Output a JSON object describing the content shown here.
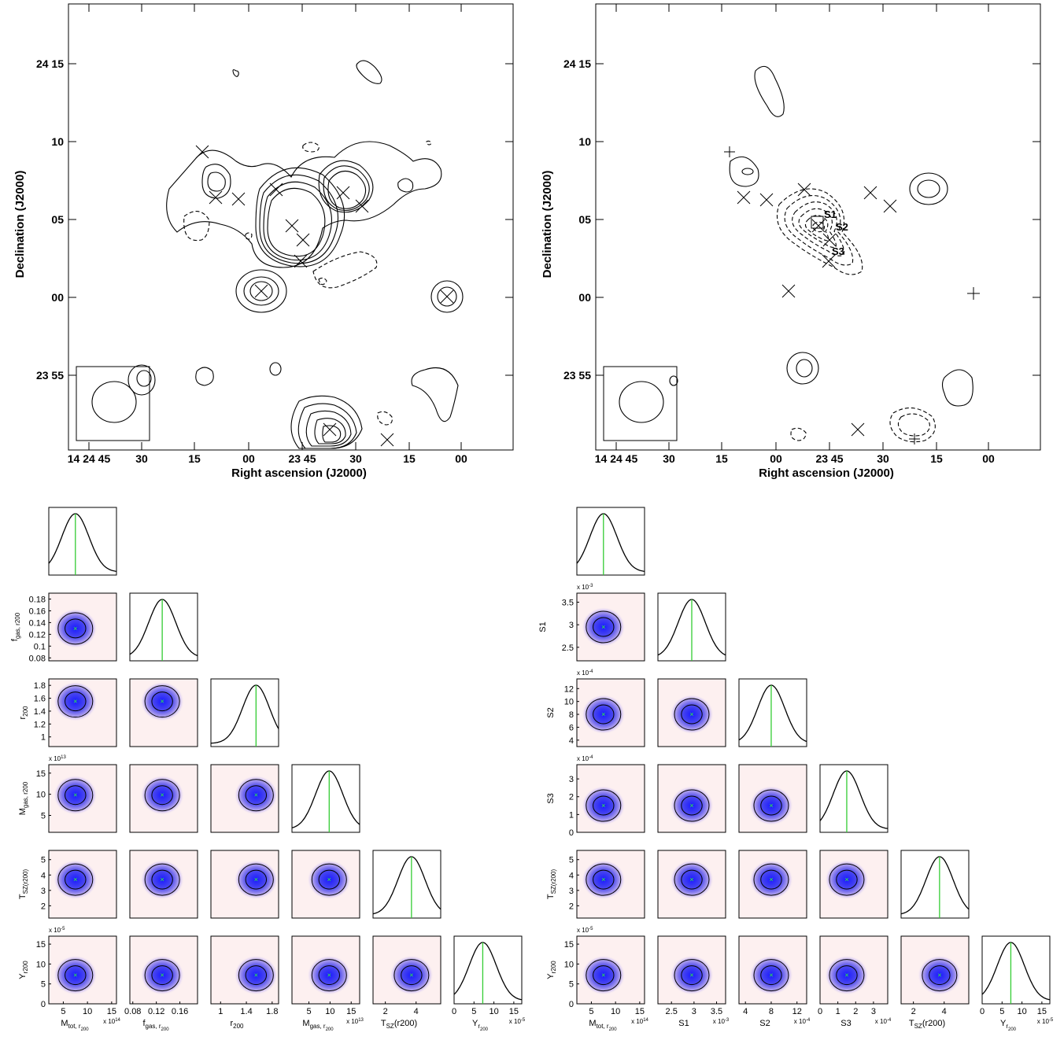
{
  "chart_data": [
    {
      "type": "contour",
      "panel": "top-left",
      "xlabel": "Right ascension (J2000)",
      "ylabel": "Declination (J2000)",
      "x_ticks": [
        "14 24 45",
        "30",
        "15",
        "00",
        "23 45",
        "30",
        "15",
        "00"
      ],
      "y_ticks": [
        "24 15",
        "10",
        "05",
        "00",
        "23 55"
      ],
      "contour_styles": [
        "solid",
        "dashed"
      ]
    },
    {
      "type": "contour",
      "panel": "top-right",
      "xlabel": "Right ascension (J2000)",
      "ylabel": "Declination (J2000)",
      "x_ticks": [
        "14 24 45",
        "30",
        "15",
        "00",
        "23 45",
        "30",
        "15",
        "00"
      ],
      "y_ticks": [
        "24 15",
        "10",
        "05",
        "00",
        "23 55"
      ],
      "source_labels": [
        "S1",
        "S2",
        "S3"
      ]
    },
    {
      "type": "corner",
      "panel": "bottom-left",
      "params": [
        {
          "label": "M_tot, r200",
          "mean": 7.5,
          "ticks": [
            "5",
            "10",
            "15"
          ],
          "range": [
            2,
            16
          ],
          "exp": "x 10",
          "exp_power": "14"
        },
        {
          "label": "f_gas, r200",
          "mean": 0.13,
          "ticks": [
            "0.08",
            "0.1",
            "0.12",
            "0.14",
            "0.16",
            "0.18"
          ],
          "range": [
            0.075,
            0.19
          ]
        },
        {
          "label": "r200",
          "mean": 1.55,
          "ticks": [
            "1",
            "1.2",
            "1.4",
            "1.6",
            "1.8"
          ],
          "range": [
            0.85,
            1.9
          ]
        },
        {
          "label": "M_gas, r200",
          "mean": 9.8,
          "ticks": [
            "5",
            "10",
            "15"
          ],
          "range": [
            1,
            17
          ],
          "exp": "x 10",
          "exp_power": "13"
        },
        {
          "label": "T_SZ(r200)",
          "mean": 3.7,
          "ticks": [
            "2",
            "3",
            "4",
            "5"
          ],
          "range": [
            1.2,
            5.6
          ]
        },
        {
          "label": "Y_r200",
          "mean": 7.2,
          "ticks": [
            "0",
            "5",
            "10",
            "15"
          ],
          "range": [
            0,
            17
          ],
          "exp": "x 10",
          "exp_power": "-5"
        }
      ],
      "bottom_ticks": [
        [
          "5",
          "10",
          "15"
        ],
        [
          "0.08",
          "0.12",
          "0.16"
        ],
        [
          "1",
          "1.4",
          "1.8"
        ],
        [
          "5",
          "10",
          "15"
        ],
        [
          "2",
          "4"
        ],
        [
          "0",
          "5",
          "10",
          "15"
        ]
      ],
      "bottom_labels": [
        "M",
        "f",
        "r",
        "M",
        "T",
        "Y"
      ],
      "bottom_subs": [
        "tot, r",
        "gas, r",
        "200",
        "gas, r",
        "SZ",
        "r"
      ],
      "bottom_subsubs": [
        "200",
        "200",
        "",
        "200",
        "",
        "200"
      ],
      "bottom_tails": [
        "",
        "",
        "",
        "",
        "(r200)",
        ""
      ],
      "bottom_exps": [
        "x 10^14",
        "",
        "",
        "x 10^13",
        "",
        "x 10^-5"
      ],
      "left_labels": [
        "f",
        "r",
        "M",
        "T",
        "Y"
      ],
      "left_subs": [
        "gas, r200",
        "200",
        "gas, r200",
        "SZ(r200)",
        "r200"
      ],
      "left_exps": [
        "",
        "",
        "x 10^13",
        "",
        "x 10^-5"
      ]
    },
    {
      "type": "corner",
      "panel": "bottom-right",
      "params": [
        {
          "label": "M_tot, r200",
          "mean": 7.5,
          "ticks": [
            "5",
            "10",
            "15"
          ],
          "range": [
            2,
            16
          ]
        },
        {
          "label": "S1",
          "mean": 2.95,
          "ticks": [
            "2.5",
            "3",
            "3.5"
          ],
          "range": [
            2.2,
            3.7
          ],
          "exp": "x 10",
          "exp_power": "-3"
        },
        {
          "label": "S2",
          "mean": 8.0,
          "ticks": [
            "4",
            "6",
            "8",
            "10",
            "12"
          ],
          "range": [
            3,
            13.5
          ],
          "exp": "x 10",
          "exp_power": "-4"
        },
        {
          "label": "S3",
          "mean": 1.5,
          "ticks": [
            "0",
            "1",
            "2",
            "3"
          ],
          "range": [
            0,
            3.8
          ],
          "exp": "x 10",
          "exp_power": "-4"
        },
        {
          "label": "T_SZ(r200)",
          "mean": 3.7,
          "ticks": [
            "2",
            "3",
            "4",
            "5"
          ],
          "range": [
            1.2,
            5.6
          ]
        },
        {
          "label": "Y_r200",
          "mean": 7.2,
          "ticks": [
            "0",
            "5",
            "10",
            "15"
          ],
          "range": [
            0,
            17
          ],
          "exp": "x 10",
          "exp_power": "-5"
        }
      ],
      "bottom_ticks": [
        [
          "5",
          "10",
          "15"
        ],
        [
          "2.5",
          "3",
          "3.5"
        ],
        [
          "4",
          "8",
          "12"
        ],
        [
          "0",
          "1",
          "2",
          "3"
        ],
        [
          "2",
          "4"
        ],
        [
          "0",
          "5",
          "10",
          "15"
        ]
      ],
      "bottom_labels": [
        "M",
        "S1",
        "S2",
        "S3",
        "T",
        "Y"
      ],
      "bottom_subs": [
        "tot, r",
        "",
        "",
        "",
        "SZ",
        "r"
      ],
      "bottom_subsubs": [
        "200",
        "",
        "",
        "",
        "",
        "200"
      ],
      "bottom_tails": [
        "",
        "",
        "",
        "",
        "(r200)",
        ""
      ],
      "bottom_exps": [
        "x 10^14",
        "x 10^-3",
        "x 10^-4",
        "x 10^-4",
        "",
        "x 10^-5"
      ],
      "left_labels": [
        "S1",
        "S2",
        "S3",
        "T",
        "Y"
      ],
      "left_subs": [
        "",
        "",
        "",
        "SZ(r200)",
        "r200"
      ],
      "left_exps": [
        "x 10^-3",
        "x 10^-4",
        "x 10^-4",
        "",
        "x 10^-5"
      ]
    }
  ]
}
